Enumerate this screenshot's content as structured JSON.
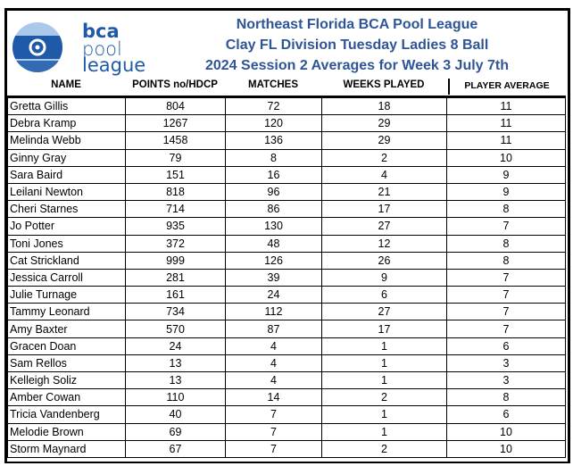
{
  "logo": {
    "line1": "bca",
    "line2": "pool",
    "line3": "league",
    "colors": {
      "dark": "#1e5aa8",
      "light": "#a9c8ea"
    }
  },
  "titles": [
    "Northeast Florida BCA Pool League",
    "Clay FL Division Tuesday Ladies 8 Ball",
    "2024 Session 2 Averages for Week 3 July 7th"
  ],
  "headers": [
    "NAME",
    "POINTS no/HDCP",
    "MATCHES",
    "WEEKS PLAYED",
    "PLAYER AVERAGE"
  ],
  "rows": [
    [
      "Gretta Gillis",
      "804",
      "72",
      "18",
      "11"
    ],
    [
      "Debra Kramp",
      "1267",
      "120",
      "29",
      "11"
    ],
    [
      "Melinda Webb",
      "1458",
      "136",
      "29",
      "11"
    ],
    [
      "Ginny Gray",
      "79",
      "8",
      "2",
      "10"
    ],
    [
      "Sara Baird",
      "151",
      "16",
      "4",
      "9"
    ],
    [
      "Leilani Newton",
      "818",
      "96",
      "21",
      "9"
    ],
    [
      "Cheri Starnes",
      "714",
      "86",
      "17",
      "8"
    ],
    [
      "Jo Potter",
      "935",
      "130",
      "27",
      "7"
    ],
    [
      "Toni Jones",
      "372",
      "48",
      "12",
      "8"
    ],
    [
      "Cat Strickland",
      "999",
      "126",
      "26",
      "8"
    ],
    [
      "Jessica Carroll",
      "281",
      "39",
      "9",
      "7"
    ],
    [
      "Julie Turnage",
      "161",
      "24",
      "6",
      "7"
    ],
    [
      "Tammy Leonard",
      "734",
      "112",
      "27",
      "7"
    ],
    [
      "Amy Baxter",
      "570",
      "87",
      "17",
      "7"
    ],
    [
      "Gracen Doan",
      "24",
      "4",
      "1",
      "6"
    ],
    [
      "Sam Rellos",
      "13",
      "4",
      "1",
      "3"
    ],
    [
      "Kelleigh Soliz",
      "13",
      "4",
      "1",
      "3"
    ],
    [
      "Amber Cowan",
      "110",
      "14",
      "2",
      "8"
    ],
    [
      "Tricia Vandenberg",
      "40",
      "7",
      "1",
      "6"
    ],
    [
      "Melodie Brown",
      "69",
      "7",
      "1",
      "10"
    ],
    [
      "Storm Maynard",
      "67",
      "7",
      "2",
      "10"
    ]
  ]
}
